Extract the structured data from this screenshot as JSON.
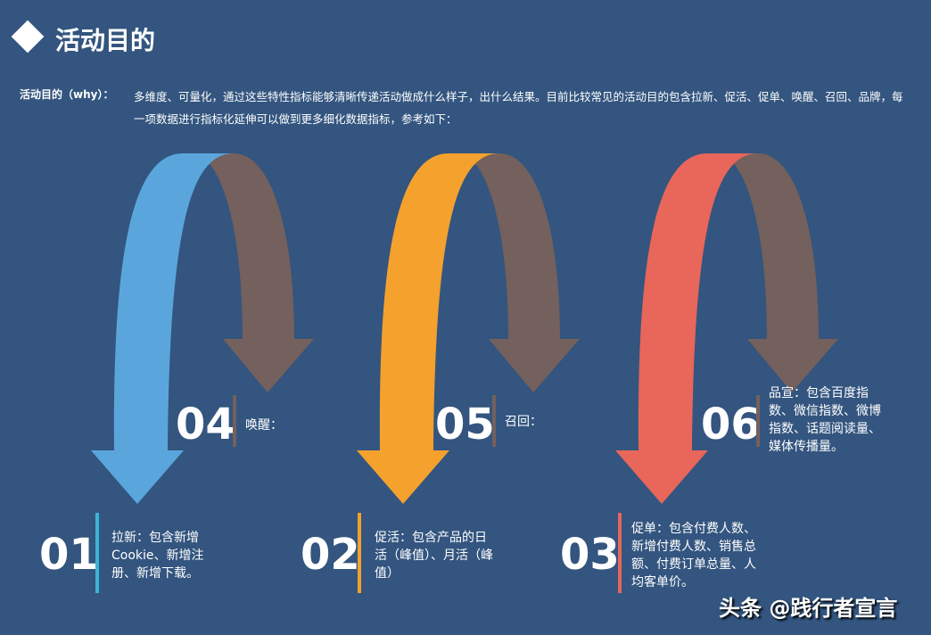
{
  "title": "活动目的",
  "intro": {
    "label": "活动目的（why）：",
    "text": "多维度、可量化，通过这些特性指标能够清晰传递活动做成什么样子，出什么结果。目前比较常见的活动目的包含拉新、促活、促单、唤醒、召回、品牌，每一项数据进行指标化延伸可以做到更多细化数据指标，参考如下："
  },
  "colors": {
    "background": "#33557f",
    "blue": "#5aa6dc",
    "yellow": "#f4a12e",
    "red": "#e8665a",
    "brown": "#74605c"
  },
  "items": [
    {
      "num": "01",
      "text": "拉新：包含新增Cookie、新增注册、新增下载。"
    },
    {
      "num": "02",
      "text": "促活：包含产品的日活（峰值）、月活（峰值）"
    },
    {
      "num": "03",
      "text": "促单：包含付费人数、新增付费人数、销售总额、付费订单总量、人均客单价。"
    },
    {
      "num": "04",
      "text": "唤醒："
    },
    {
      "num": "05",
      "text": "召回："
    },
    {
      "num": "06",
      "text": "品宣：包含百度指数、微信指数、微博指数、话题阅读量、媒体传播量。"
    }
  ],
  "watermark": "头条 @践行者宣言"
}
